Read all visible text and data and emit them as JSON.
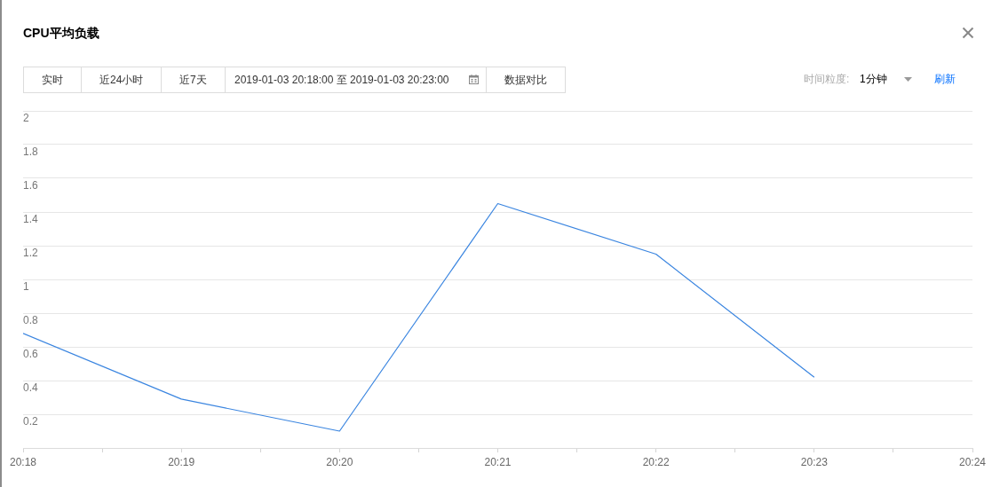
{
  "chart_data": {
    "type": "line",
    "title": "CPU平均负载",
    "annotations": [
      "实时",
      "近24小时",
      "近7天",
      "2019-01-03 20:18:00 至 2019-01-03 20:23:00",
      "数据对比",
      "时间粒度:",
      "1分钟",
      "刷新"
    ],
    "x": [
      20.3,
      20.316667,
      20.333333,
      20.35,
      20.366667,
      20.383333
    ],
    "series": [
      {
        "color": "#3a85e0",
        "values": [
          0.68,
          0.29,
          0.1,
          1.45,
          1.15,
          0.42
        ]
      }
    ],
    "xlim": [
      20.3,
      20.4
    ],
    "xticks": [
      {
        "value": 20.3,
        "label": "20:18"
      },
      {
        "value": 20.308333,
        "label": null
      },
      {
        "value": 20.316667,
        "label": "20:19"
      },
      {
        "value": 20.325,
        "label": null
      },
      {
        "value": 20.333333,
        "label": "20:20"
      },
      {
        "value": 20.341667,
        "label": null
      },
      {
        "value": 20.35,
        "label": "20:21"
      },
      {
        "value": 20.358333,
        "label": null
      },
      {
        "value": 20.366667,
        "label": "20:22"
      },
      {
        "value": 20.375,
        "label": null
      },
      {
        "value": 20.383333,
        "label": "20:23"
      },
      {
        "value": 20.391667,
        "label": null
      },
      {
        "value": 20.4,
        "label": "20:24"
      }
    ],
    "ylim": [
      0,
      2
    ],
    "yticks": [
      {
        "value": 0,
        "label": null
      },
      0.2,
      0.4,
      0.6,
      0.8,
      1,
      1.2,
      1.4,
      1.6,
      1.8,
      2
    ],
    "grid": "y",
    "marker": "none",
    "line_style": "solid"
  }
}
